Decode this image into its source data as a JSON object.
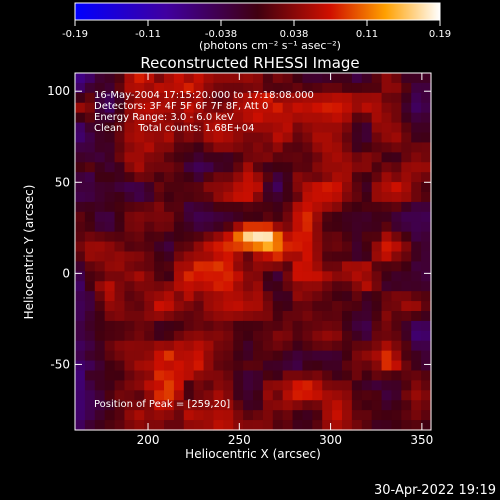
{
  "chart_data": {
    "type": "heatmap",
    "title": "Reconstructed RHESSI Image",
    "xlabel": "Heliocentric X (arcsec)",
    "ylabel": "Heliocentric Y (arcsec)",
    "xlim": [
      160,
      355
    ],
    "ylim": [
      -86,
      110
    ],
    "xticks": [
      200,
      250,
      300,
      350
    ],
    "yticks": [
      -50,
      0,
      50,
      100
    ],
    "colorbar": {
      "ticks": [
        "-0.19",
        "-0.11",
        "-0.038",
        "0.038",
        "0.11",
        "0.19"
      ],
      "range": [
        -0.19,
        0.19
      ],
      "units": "(photons cm⁻² s⁻¹ asec⁻²)"
    },
    "annotations": [
      "16-May-2004 17:15:20.000 to 17:18:08.000",
      "Detectors: 3F 4F 5F 6F 7F 8F, Att 0",
      "Energy Range: 3.0 - 6.0 keV",
      "Clean     Total counts: 1.68E+04"
    ],
    "peak_text": "Position of Peak = [259,20]",
    "peak": {
      "x": 259,
      "y": 20,
      "value": 0.19
    },
    "grid": false,
    "legend": "none"
  },
  "footer": {
    "timestamp": "30-Apr-2022 19:19"
  }
}
